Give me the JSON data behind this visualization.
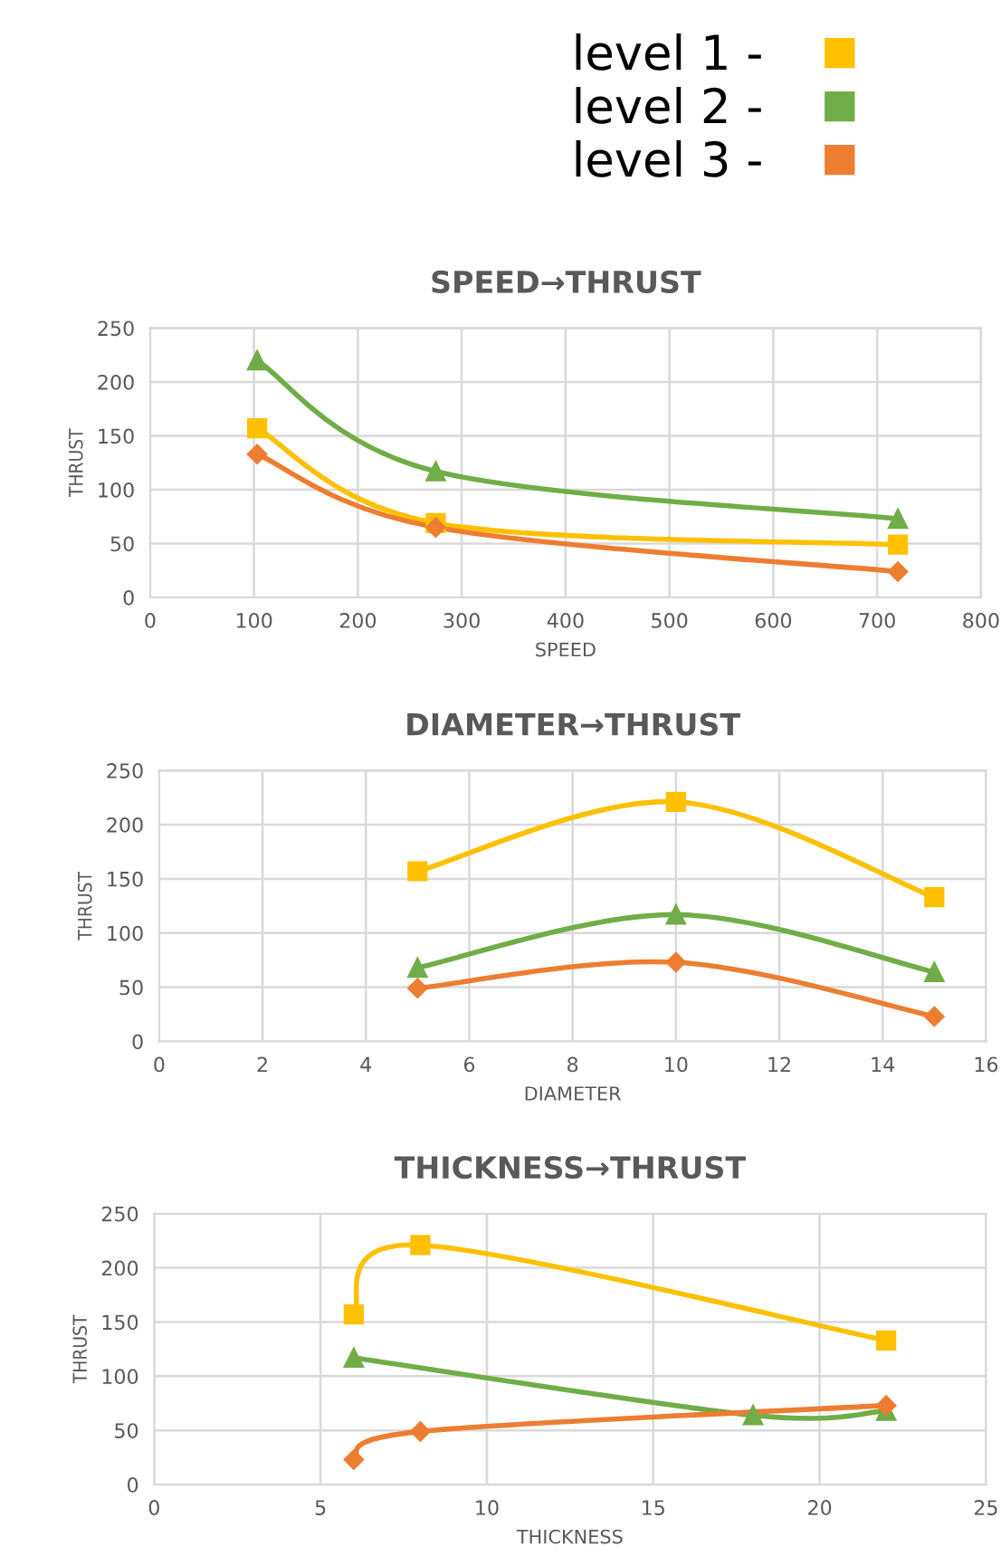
{
  "chart_data": [
    {
      "type": "line",
      "title": "SPEED→THRUST",
      "xlabel": "SPEED",
      "ylabel": "THRUST",
      "xlim": [
        0,
        800
      ],
      "xticks": [
        0,
        100,
        200,
        300,
        400,
        500,
        600,
        700,
        800
      ],
      "ylim": [
        0,
        250
      ],
      "yticks": [
        0,
        50,
        100,
        150,
        200,
        250
      ],
      "grid": true,
      "legend": "top",
      "series": [
        {
          "name": "level 1 -",
          "color": "#ffc000",
          "marker": "square",
          "x": [
            103,
            275,
            720
          ],
          "values": [
            157,
            69,
            49
          ]
        },
        {
          "name": "level 2 -",
          "color": "#70ad47",
          "marker": "triangle",
          "x": [
            103,
            275,
            720
          ],
          "values": [
            220,
            117,
            73
          ]
        },
        {
          "name": "level 3 -",
          "color": "#ed7d31",
          "marker": "diamond",
          "x": [
            103,
            275,
            720
          ],
          "values": [
            133,
            65,
            24
          ]
        }
      ]
    },
    {
      "type": "line",
      "title": "DIAMETER→THRUST",
      "xlabel": "DIAMETER",
      "ylabel": "THRUST",
      "xlim": [
        0,
        16
      ],
      "xticks": [
        0,
        2,
        4,
        6,
        8,
        10,
        12,
        14,
        16
      ],
      "ylim": [
        0,
        250
      ],
      "yticks": [
        0,
        50,
        100,
        150,
        200,
        250
      ],
      "grid": true,
      "series": [
        {
          "color": "#ffc000",
          "marker": "square",
          "x": [
            5,
            10,
            15
          ],
          "values": [
            157,
            221,
            133
          ]
        },
        {
          "color": "#70ad47",
          "marker": "triangle",
          "x": [
            5,
            10,
            15
          ],
          "values": [
            68,
            117,
            64
          ]
        },
        {
          "color": "#ed7d31",
          "marker": "diamond",
          "x": [
            5,
            10,
            15
          ],
          "values": [
            49,
            73,
            23
          ]
        }
      ]
    },
    {
      "type": "line",
      "title": "THICKNESS→THRUST",
      "xlabel": "THICKNESS",
      "ylabel": "THRUST",
      "xlim": [
        0,
        25
      ],
      "xticks": [
        0,
        5,
        10,
        15,
        20,
        25
      ],
      "ylim": [
        0,
        250
      ],
      "yticks": [
        0,
        50,
        100,
        150,
        200,
        250
      ],
      "grid": true,
      "series": [
        {
          "color": "#ffc000",
          "marker": "square",
          "x": [
            6,
            8,
            22
          ],
          "values": [
            157,
            221,
            133
          ]
        },
        {
          "color": "#70ad47",
          "marker": "triangle",
          "x": [
            6,
            18,
            22
          ],
          "values": [
            117,
            64,
            68
          ]
        },
        {
          "color": "#ed7d31",
          "marker": "diamond",
          "x": [
            6,
            8,
            22
          ],
          "values": [
            23,
            49,
            73
          ]
        }
      ]
    }
  ]
}
